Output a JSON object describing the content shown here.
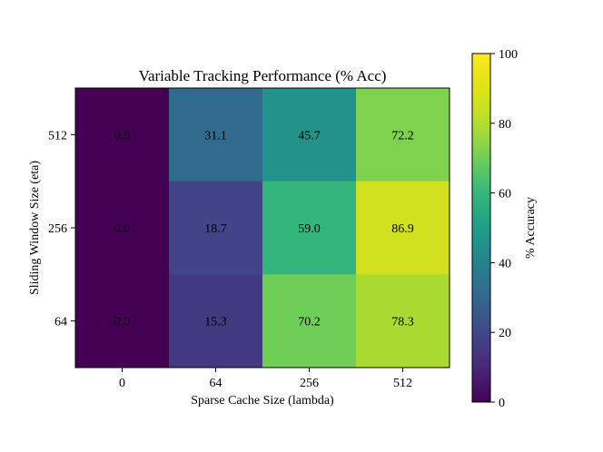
{
  "chart_data": {
    "type": "heatmap",
    "title": "Variable Tracking Performance (% Acc)",
    "xlabel": "Sparse Cache Size (lambda)",
    "ylabel": "Sliding Window Size (eta)",
    "x_categories": [
      "0",
      "64",
      "256",
      "512"
    ],
    "y_categories": [
      "512",
      "256",
      "64"
    ],
    "values": [
      [
        0.0,
        31.1,
        45.7,
        72.2
      ],
      [
        0.0,
        18.7,
        59.0,
        86.9
      ],
      [
        0.0,
        15.3,
        70.2,
        78.3
      ]
    ],
    "value_labels": [
      [
        "0.0",
        "31.1",
        "45.7",
        "72.2"
      ],
      [
        "0.0",
        "18.7",
        "59.0",
        "86.9"
      ],
      [
        "0.0",
        "15.3",
        "70.2",
        "78.3"
      ]
    ],
    "colormap": "viridis",
    "colorbar": {
      "label": "% Accuracy",
      "range": [
        0,
        100
      ],
      "ticks": [
        0,
        20,
        40,
        60,
        80,
        100
      ]
    }
  }
}
